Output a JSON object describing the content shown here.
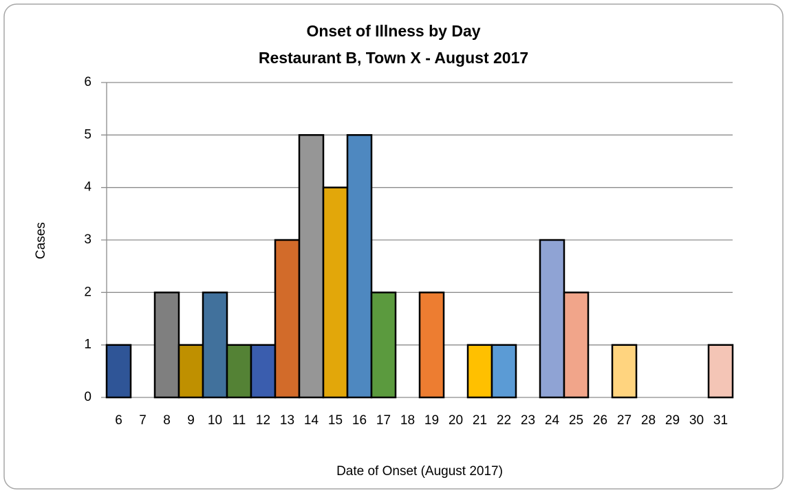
{
  "chart_data": {
    "type": "bar",
    "title": "Onset of Illness by Day",
    "subtitle": "Restaurant B, Town X - August 2017",
    "x_label": "Date of Onset (August 2017)",
    "y_label": "Cases",
    "categories": [
      "6",
      "7",
      "8",
      "9",
      "10",
      "11",
      "12",
      "13",
      "14",
      "15",
      "16",
      "17",
      "18",
      "19",
      "20",
      "21",
      "22",
      "23",
      "24",
      "25",
      "26",
      "27",
      "28",
      "29",
      "30",
      "31"
    ],
    "values": [
      1,
      0,
      2,
      1,
      2,
      1,
      1,
      3,
      5,
      4,
      5,
      2,
      0,
      2,
      0,
      1,
      1,
      0,
      3,
      2,
      0,
      1,
      0,
      0,
      0,
      1
    ],
    "colors": [
      "#2f5597",
      null,
      "#7f7f7f",
      "#bf9000",
      "#41719c",
      "#548235",
      "#3a5dae",
      "#d26b2a",
      "#969696",
      "#e2a70a",
      "#4e88c0",
      "#5b9a3e",
      null,
      "#ed7d31",
      null,
      "#ffc000",
      "#5b9bd5",
      null,
      "#8fa3d4",
      "#f1a58a",
      null,
      "#ffd47f",
      null,
      null,
      null,
      "#f4c5b6"
    ],
    "ylim": [
      0,
      6
    ],
    "yticks": [
      0,
      1,
      2,
      3,
      4,
      5,
      6
    ],
    "grid": true
  }
}
